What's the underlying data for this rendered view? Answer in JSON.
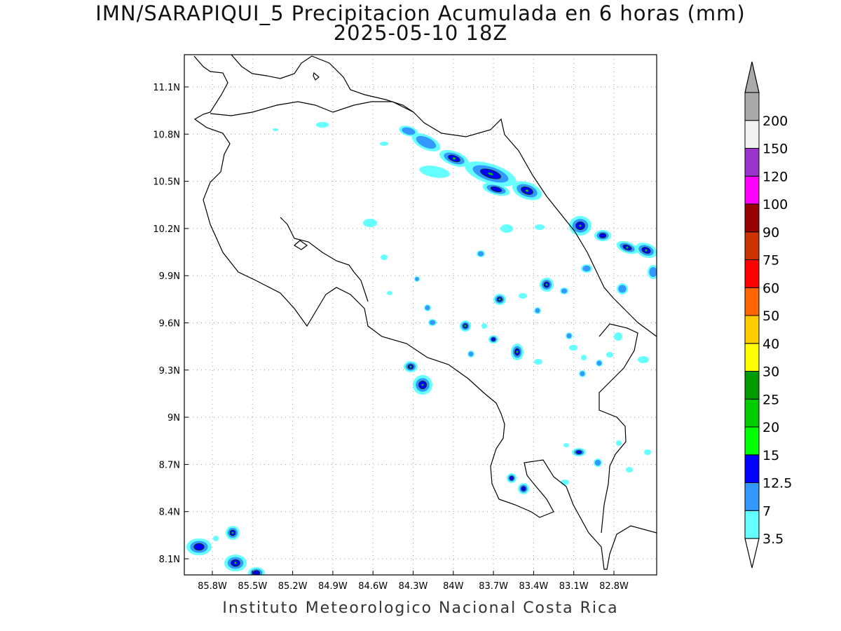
{
  "header": {
    "title": "IMN/SARAPIQUI_5 Precipitacion Acumulada en 6 horas (mm)",
    "subtitle": "2025-05-10 18Z"
  },
  "footer": {
    "credit": "Instituto Meteorologico Nacional Costa Rica"
  },
  "axes": {
    "lat_ticks": [
      "11.1N",
      "10.8N",
      "10.5N",
      "10.2N",
      "9.9N",
      "9.6N",
      "9.3N",
      "9N",
      "8.7N",
      "8.4N",
      "8.1N"
    ],
    "lon_ticks": [
      "85.8W",
      "85.5W",
      "85.2W",
      "84.9W",
      "84.6W",
      "84.3W",
      "84W",
      "83.7W",
      "83.4W",
      "83.1W",
      "82.8W"
    ],
    "grid": "dotted"
  },
  "colorbar": {
    "levels": [
      "3.5",
      "7",
      "12.5",
      "15",
      "20",
      "25",
      "30",
      "40",
      "50",
      "60",
      "75",
      "90",
      "100",
      "120",
      "150",
      "200"
    ],
    "colors": [
      "#66ffff",
      "#3399ff",
      "#0000ff",
      "#00ff00",
      "#00cc00",
      "#009900",
      "#ffff00",
      "#ffcc00",
      "#ff6600",
      "#ff0000",
      "#cc3300",
      "#990000",
      "#ff00ff",
      "#9933cc",
      "#f2f2f2",
      "#aaaaaa"
    ],
    "under_color": "#ffffff"
  },
  "map": {
    "background": "#ffffff",
    "coastline_color": "#000000"
  }
}
